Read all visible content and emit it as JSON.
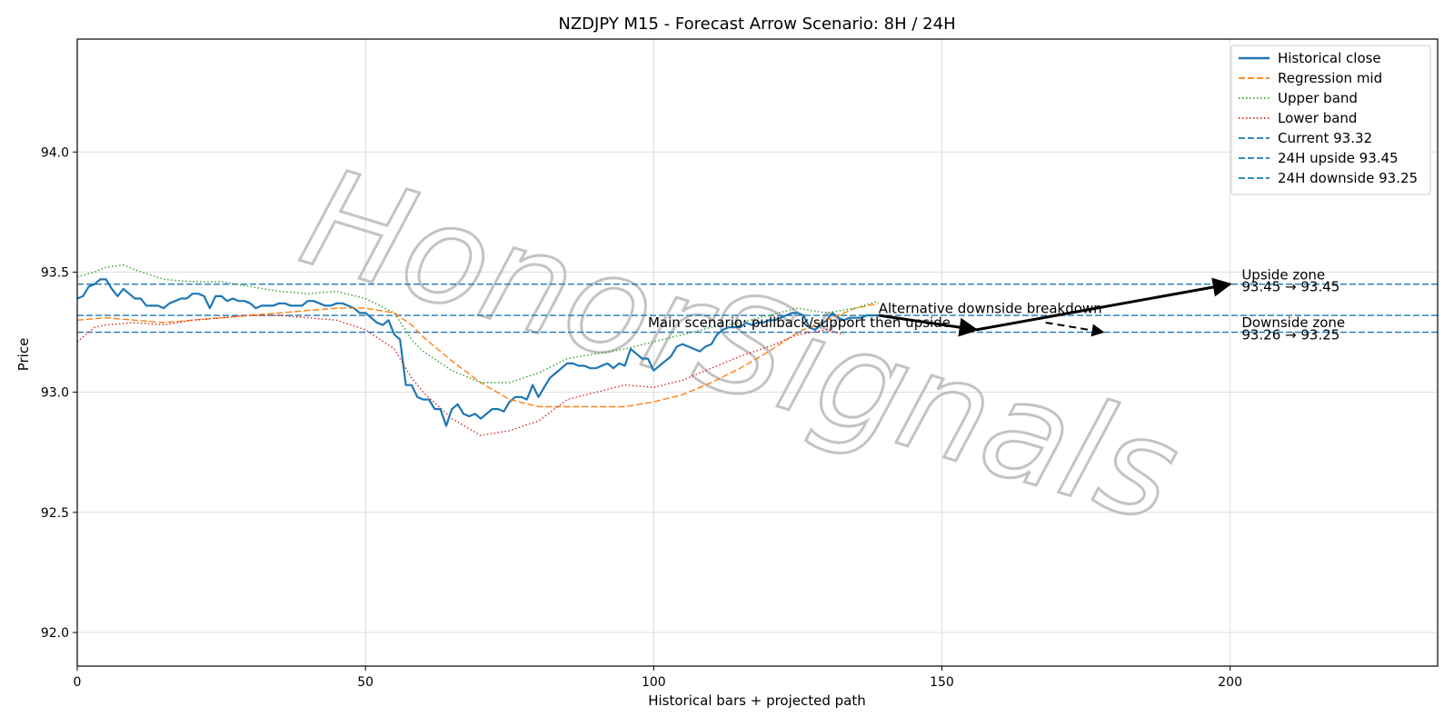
{
  "chart_data": {
    "type": "line",
    "title": "NZDJPY M15 - Forecast Arrow Scenario: 8H / 24H",
    "xlabel": "Historical bars + projected path",
    "ylabel": "Price",
    "xlim": [
      0,
      236
    ],
    "ylim": [
      91.86,
      94.47
    ],
    "xticks": [
      0,
      50,
      100,
      150,
      200
    ],
    "xtick_labels": [
      "0",
      "50",
      "100",
      "150",
      "200"
    ],
    "yticks": [
      92.0,
      92.5,
      93.0,
      93.5,
      94.0
    ],
    "ytick_labels": [
      "92.0",
      "92.5",
      "93.0",
      "93.5",
      "94.0"
    ],
    "grid": true,
    "legend_position": "top-right",
    "colors": {
      "close": "#1f77b4",
      "mid": "#ff7f0e",
      "upper": "#2ca02c",
      "lower": "#d62728",
      "levels": "#1f77b4",
      "arrows": "#000000"
    },
    "series": [
      {
        "name": "Historical close",
        "style": "solid",
        "x": [
          0,
          1,
          2,
          3,
          4,
          5,
          6,
          7,
          8,
          9,
          10,
          11,
          12,
          13,
          14,
          15,
          16,
          17,
          18,
          19,
          20,
          21,
          22,
          23,
          24,
          25,
          26,
          27,
          28,
          29,
          30,
          31,
          32,
          33,
          34,
          35,
          36,
          37,
          38,
          39,
          40,
          41,
          42,
          43,
          44,
          45,
          46,
          47,
          48,
          49,
          50,
          51,
          52,
          53,
          54,
          55,
          56,
          57,
          58,
          59,
          60,
          61,
          62,
          63,
          64,
          65,
          66,
          67,
          68,
          69,
          70,
          71,
          72,
          73,
          74,
          75,
          76,
          77,
          78,
          79,
          80,
          81,
          82,
          83,
          84,
          85,
          86,
          87,
          88,
          89,
          90,
          91,
          92,
          93,
          94,
          95,
          96,
          97,
          98,
          99,
          100,
          101,
          102,
          103,
          104,
          105,
          106,
          107,
          108,
          109,
          110,
          111,
          112,
          113,
          114,
          115,
          116,
          117,
          118,
          119,
          120,
          121,
          122,
          123,
          124,
          125,
          126,
          127,
          128,
          129,
          130,
          131,
          132,
          133,
          134,
          135,
          136,
          137,
          138,
          139
        ],
        "values": [
          93.39,
          93.4,
          93.44,
          93.45,
          93.47,
          93.47,
          93.43,
          93.4,
          93.43,
          93.41,
          93.39,
          93.39,
          93.36,
          93.36,
          93.36,
          93.35,
          93.37,
          93.38,
          93.39,
          93.39,
          93.41,
          93.41,
          93.4,
          93.35,
          93.4,
          93.4,
          93.38,
          93.39,
          93.38,
          93.38,
          93.37,
          93.35,
          93.36,
          93.36,
          93.36,
          93.37,
          93.37,
          93.36,
          93.36,
          93.36,
          93.38,
          93.38,
          93.37,
          93.36,
          93.36,
          93.37,
          93.37,
          93.36,
          93.35,
          93.33,
          93.33,
          93.31,
          93.29,
          93.28,
          93.3,
          93.24,
          93.22,
          93.03,
          93.03,
          92.98,
          92.97,
          92.97,
          92.93,
          92.93,
          92.86,
          92.93,
          92.95,
          92.91,
          92.9,
          92.91,
          92.89,
          92.91,
          92.93,
          92.93,
          92.92,
          92.96,
          92.98,
          92.98,
          92.97,
          93.03,
          92.98,
          93.02,
          93.06,
          93.08,
          93.1,
          93.12,
          93.12,
          93.11,
          93.11,
          93.1,
          93.1,
          93.11,
          93.12,
          93.1,
          93.12,
          93.11,
          93.18,
          93.16,
          93.14,
          93.14,
          93.09,
          93.11,
          93.13,
          93.15,
          93.19,
          93.2,
          93.19,
          93.18,
          93.17,
          93.19,
          93.2,
          93.24,
          93.26,
          93.27,
          93.27,
          93.27,
          93.29,
          93.28,
          93.29,
          93.29,
          93.3,
          93.3,
          93.31,
          93.32,
          93.33,
          93.33,
          93.32,
          93.27,
          93.26,
          93.28,
          93.3,
          93.33,
          93.31,
          93.3,
          93.31,
          93.31,
          93.31,
          93.32,
          93.32,
          93.32
        ]
      },
      {
        "name": "Regression mid",
        "style": "dashed",
        "x": [
          0,
          5,
          10,
          15,
          20,
          25,
          30,
          35,
          40,
          45,
          50,
          55,
          58,
          60,
          65,
          70,
          75,
          80,
          85,
          90,
          95,
          100,
          105,
          110,
          115,
          120,
          125,
          130,
          135,
          139
        ],
        "values": [
          93.3,
          93.31,
          93.3,
          93.29,
          93.3,
          93.31,
          93.32,
          93.33,
          93.34,
          93.35,
          93.35,
          93.33,
          93.28,
          93.23,
          93.13,
          93.04,
          92.97,
          92.94,
          92.94,
          92.94,
          92.94,
          92.96,
          92.99,
          93.04,
          93.1,
          93.17,
          93.25,
          93.3,
          93.35,
          93.37
        ]
      },
      {
        "name": "Upper band",
        "style": "dotted",
        "x": [
          0,
          3,
          5,
          8,
          10,
          15,
          20,
          25,
          30,
          35,
          40,
          45,
          50,
          55,
          58,
          60,
          65,
          70,
          75,
          80,
          85,
          90,
          95,
          100,
          105,
          110,
          115,
          120,
          125,
          130,
          135,
          139
        ],
        "values": [
          93.48,
          93.5,
          93.52,
          93.53,
          93.51,
          93.47,
          93.46,
          93.46,
          93.44,
          93.42,
          93.41,
          93.42,
          93.39,
          93.33,
          93.22,
          93.17,
          93.09,
          93.04,
          93.04,
          93.08,
          93.14,
          93.16,
          93.18,
          93.21,
          93.24,
          93.27,
          93.29,
          93.32,
          93.35,
          93.33,
          93.35,
          93.38
        ]
      },
      {
        "name": "Lower band",
        "style": "dotted",
        "x": [
          0,
          3,
          5,
          10,
          15,
          20,
          25,
          30,
          35,
          40,
          45,
          50,
          55,
          58,
          60,
          65,
          70,
          75,
          80,
          85,
          90,
          95,
          100,
          105,
          110,
          115,
          120,
          125,
          130,
          133
        ],
        "values": [
          93.21,
          93.27,
          93.28,
          93.29,
          93.28,
          93.3,
          93.31,
          93.32,
          93.32,
          93.31,
          93.3,
          93.26,
          93.18,
          93.06,
          93.0,
          92.89,
          92.82,
          92.84,
          92.88,
          92.97,
          93.0,
          93.03,
          93.02,
          93.05,
          93.1,
          93.15,
          93.19,
          93.24,
          93.26,
          93.24
        ]
      }
    ],
    "reference_lines": [
      {
        "name": "Current 93.32",
        "y": 93.32,
        "style": "dashed"
      },
      {
        "name": "24H upside 93.45",
        "y": 93.45,
        "style": "dashed"
      },
      {
        "name": "24H downside 93.25",
        "y": 93.25,
        "style": "dashed"
      }
    ],
    "arrows": [
      {
        "from": [
          139,
          93.32
        ],
        "to": [
          156,
          93.26
        ],
        "style": "solid"
      },
      {
        "from": [
          156,
          93.26
        ],
        "to": [
          200,
          93.45
        ],
        "style": "solid"
      },
      {
        "from": [
          168,
          93.29
        ],
        "to": [
          178,
          93.25
        ],
        "style": "dashed"
      }
    ],
    "annotations": [
      {
        "text": "Main scenario: pullback/support then upside",
        "x": 99,
        "y": 93.27
      },
      {
        "text": "Alternative downside breakdown",
        "x": 139,
        "y": 93.33
      },
      {
        "text": "Upside zone",
        "x": 202,
        "y": 93.47
      },
      {
        "text": "93.45 → 93.45",
        "x": 202,
        "y": 93.42
      },
      {
        "text": "Downside zone",
        "x": 202,
        "y": 93.27
      },
      {
        "text": "93.26 → 93.25",
        "x": 202,
        "y": 93.22
      }
    ],
    "watermark": "HonorSignals"
  }
}
